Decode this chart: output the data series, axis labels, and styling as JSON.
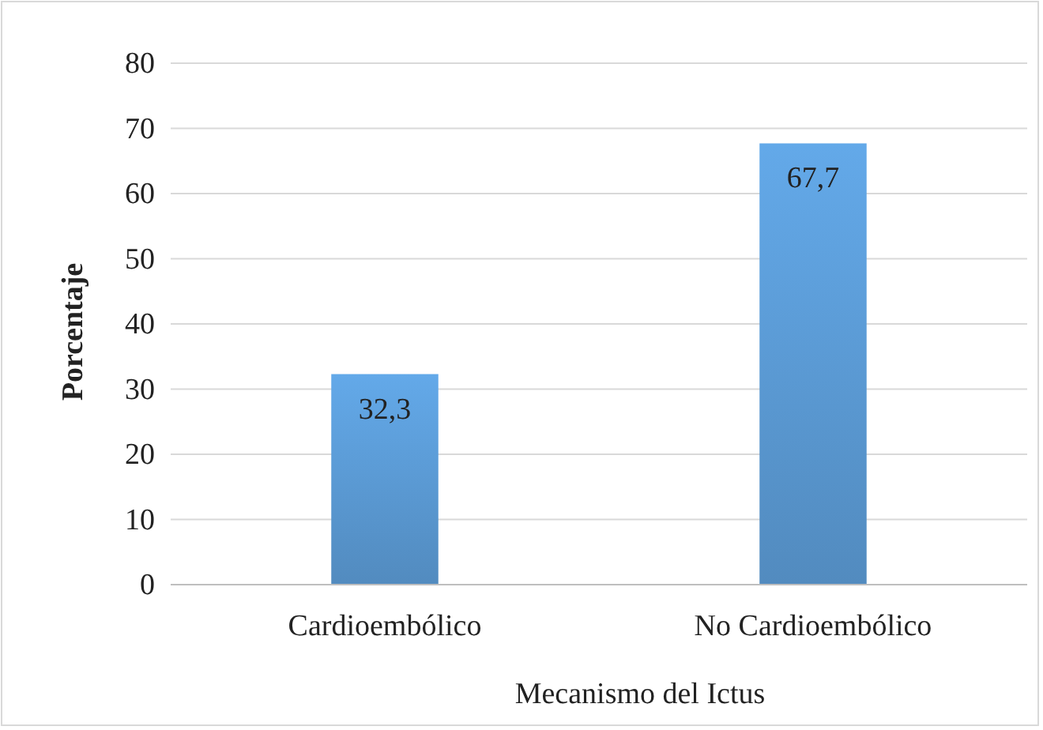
{
  "chart_data": {
    "type": "bar",
    "xlabel": "Mecanismo del Ictus",
    "ylabel": "Porcentaje",
    "categories": [
      "Cardioembólico",
      "No Cardioembólico"
    ],
    "values": [
      32.3,
      67.7
    ],
    "color": "#5b9bd5",
    "value_labels": [
      "32,3",
      "67,7"
    ],
    "ylim": [
      0,
      80
    ],
    "yticks": [
      0,
      10,
      20,
      30,
      40,
      50,
      60,
      70,
      80
    ],
    "grid": "y"
  }
}
